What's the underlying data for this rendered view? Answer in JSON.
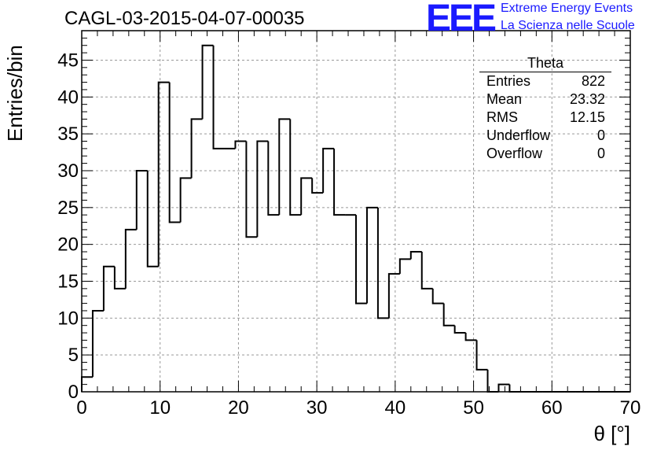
{
  "header": {
    "title": "CAGL-03-2015-04-07-00035",
    "logo": "EEE",
    "logo_line1": "Extreme Energy Events",
    "logo_line2": "La Scienza nelle Scuole",
    "brand_color": "#1a1aff"
  },
  "stats": {
    "title": "Theta",
    "rows": [
      {
        "label": "Entries",
        "value": "822"
      },
      {
        "label": "Mean",
        "value": "23.32"
      },
      {
        "label": "RMS",
        "value": "12.15"
      },
      {
        "label": "Underflow",
        "value": "0"
      },
      {
        "label": "Overflow",
        "value": "0"
      }
    ]
  },
  "chart_data": {
    "type": "bar",
    "histogram": true,
    "title": "CAGL-03-2015-04-07-00035",
    "xlabel": "θ [°]",
    "ylabel": "Entries/bin",
    "xlim": [
      0,
      70
    ],
    "ylim": [
      0,
      49
    ],
    "bin_width": 1.4,
    "bin_edges_start": 0,
    "values": [
      2,
      11,
      17,
      14,
      22,
      30,
      17,
      42,
      23,
      29,
      37,
      47,
      33,
      33,
      34,
      21,
      34,
      24,
      37,
      24,
      29,
      27,
      33,
      24,
      24,
      12,
      25,
      10,
      16,
      18,
      19,
      14,
      12,
      9,
      8,
      7,
      3,
      0,
      1,
      0,
      0,
      0,
      0,
      0,
      0,
      0,
      0,
      0,
      0,
      0
    ],
    "xticks": [
      "0",
      "10",
      "20",
      "30",
      "40",
      "50",
      "60",
      "70"
    ],
    "yticks": [
      "0",
      "5",
      "10",
      "15",
      "20",
      "25",
      "30",
      "35",
      "40",
      "45"
    ],
    "grid": true,
    "line_color": "#000000"
  }
}
